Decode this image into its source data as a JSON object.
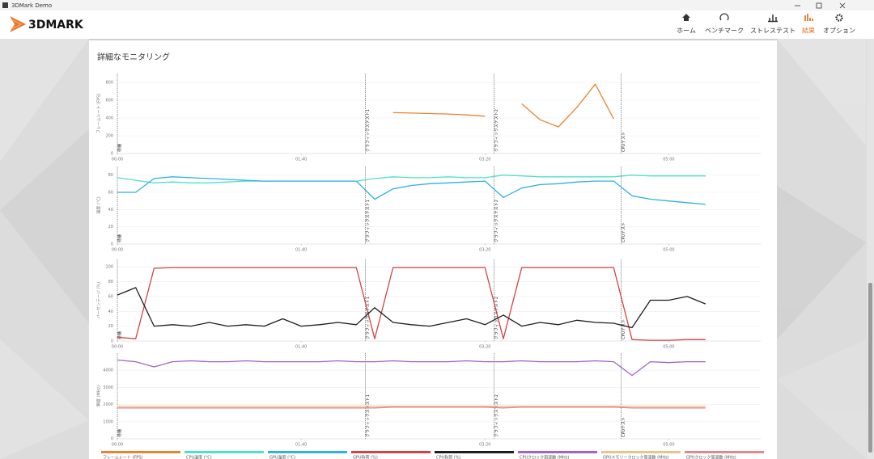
{
  "window": {
    "title": "3DMark Demo"
  },
  "app": {
    "logo": "3DMARK",
    "nav": [
      "ホーム",
      "ベンチマーク",
      "ストレステスト",
      "結果",
      "オプション"
    ],
    "active": 3
  },
  "panel": {
    "title": "詳細なモニタリング"
  },
  "phases": [
    {
      "x": 0,
      "label": "待機"
    },
    {
      "x": 135,
      "label": "グラフィックステスト1"
    },
    {
      "x": 205,
      "label": "グラフィックステスト2"
    },
    {
      "x": 274,
      "label": "CPUテスト"
    }
  ],
  "chart_data": [
    {
      "type": "line",
      "ylabel": "フレームレート (FPS)",
      "x": [
        0,
        10,
        20,
        30,
        40,
        50,
        60,
        70,
        80,
        90,
        100,
        110,
        120,
        130,
        140,
        150,
        160,
        170,
        180,
        190,
        200,
        210,
        220,
        230,
        240,
        250,
        260,
        270,
        280,
        290,
        300,
        310,
        320
      ],
      "xlim": [
        0,
        350
      ],
      "xticks": [
        {
          "value": 0,
          "label": "00:00"
        },
        {
          "value": 100,
          "label": "01:40"
        },
        {
          "value": 200,
          "label": "03:20"
        },
        {
          "value": 300,
          "label": "05:00"
        }
      ],
      "ylim": [
        0,
        900
      ],
      "yticks": [
        0,
        200,
        400,
        600,
        800
      ],
      "grid": true,
      "series": [
        {
          "name": "フレームレート (FPS)",
          "color": "#e8832f",
          "values": [
            null,
            null,
            null,
            null,
            null,
            null,
            null,
            null,
            null,
            null,
            null,
            null,
            null,
            null,
            null,
            460,
            455,
            450,
            445,
            435,
            420,
            null,
            560,
            380,
            300,
            520,
            780,
            390,
            null,
            null,
            null,
            null,
            null
          ]
        }
      ]
    },
    {
      "type": "line",
      "ylabel": "温度 (°C)",
      "x": [
        0,
        10,
        20,
        30,
        40,
        50,
        60,
        70,
        80,
        90,
        100,
        110,
        120,
        130,
        140,
        150,
        160,
        170,
        180,
        190,
        200,
        210,
        220,
        230,
        240,
        250,
        260,
        270,
        280,
        290,
        300,
        310,
        320
      ],
      "xlim": [
        0,
        350
      ],
      "xticks": [
        {
          "value": 0,
          "label": "00:00"
        },
        {
          "value": 100,
          "label": "01:40"
        },
        {
          "value": 200,
          "label": "03:20"
        },
        {
          "value": 300,
          "label": "05:00"
        }
      ],
      "ylim": [
        0,
        90
      ],
      "yticks": [
        0,
        20,
        40,
        60,
        80
      ],
      "grid": true,
      "series": [
        {
          "name": "CPU温度 (°C)",
          "color": "#4fe0c8",
          "values": [
            77,
            74,
            71,
            72,
            71,
            71,
            72,
            73,
            73,
            73,
            73,
            73,
            73,
            73,
            76,
            78,
            77,
            77,
            78,
            77,
            77,
            80,
            79,
            78,
            78,
            78,
            78,
            78,
            80,
            79,
            79,
            79,
            79
          ]
        },
        {
          "name": "GPU温度 (°C)",
          "color": "#2fb1e3",
          "values": [
            60,
            60,
            76,
            78,
            77,
            76,
            75,
            74,
            73,
            73,
            73,
            73,
            73,
            73,
            52,
            64,
            68,
            70,
            71,
            72,
            73,
            54,
            65,
            69,
            70,
            72,
            73,
            73,
            56,
            52,
            50,
            48,
            46
          ]
        }
      ]
    },
    {
      "type": "line",
      "ylabel": "パーセンテージ (%)",
      "x": [
        0,
        10,
        20,
        30,
        40,
        50,
        60,
        70,
        80,
        90,
        100,
        110,
        120,
        130,
        140,
        150,
        160,
        170,
        180,
        190,
        200,
        210,
        220,
        230,
        240,
        250,
        260,
        270,
        280,
        290,
        300,
        310,
        320
      ],
      "xlim": [
        0,
        350
      ],
      "xticks": [
        {
          "value": 0,
          "label": "00:00"
        },
        {
          "value": 100,
          "label": "01:40"
        },
        {
          "value": 200,
          "label": "03:20"
        },
        {
          "value": 300,
          "label": "05:00"
        }
      ],
      "ylim": [
        0,
        110
      ],
      "yticks": [
        0,
        20,
        40,
        60,
        80,
        100
      ],
      "grid": true,
      "series": [
        {
          "name": "GPU負荷 (%)",
          "color": "#d14444",
          "values": [
            5,
            3,
            98,
            99,
            99,
            99,
            99,
            99,
            99,
            99,
            99,
            99,
            99,
            99,
            3,
            99,
            99,
            99,
            99,
            99,
            99,
            3,
            99,
            99,
            99,
            99,
            99,
            99,
            2,
            1,
            1,
            2,
            2
          ]
        },
        {
          "name": "CPU負荷 (%)",
          "color": "#1e1e1e",
          "values": [
            62,
            72,
            20,
            22,
            20,
            25,
            20,
            22,
            20,
            30,
            20,
            22,
            25,
            22,
            45,
            25,
            22,
            20,
            25,
            30,
            22,
            35,
            20,
            25,
            22,
            28,
            25,
            24,
            18,
            55,
            55,
            60,
            50
          ]
        }
      ]
    },
    {
      "type": "line",
      "ylabel": "頻度 (MHz)",
      "x": [
        0,
        10,
        20,
        30,
        40,
        50,
        60,
        70,
        80,
        90,
        100,
        110,
        120,
        130,
        140,
        150,
        160,
        170,
        180,
        190,
        200,
        210,
        220,
        230,
        240,
        250,
        260,
        270,
        280,
        290,
        300,
        310,
        320
      ],
      "xlim": [
        0,
        350
      ],
      "xticks": [
        {
          "value": 0,
          "label": "00:00"
        },
        {
          "value": 100,
          "label": "01:40"
        },
        {
          "value": 200,
          "label": "03:20"
        },
        {
          "value": 300,
          "label": "05:00"
        }
      ],
      "ylim": [
        0,
        5000
      ],
      "yticks": [
        0,
        1000,
        2000,
        3000,
        4000
      ],
      "grid": true,
      "series": [
        {
          "name": "CPUクロック周波数 (MHz)",
          "color": "#a263c4",
          "values": [
            4600,
            4500,
            4200,
            4500,
            4550,
            4500,
            4500,
            4550,
            4500,
            4500,
            4500,
            4500,
            4550,
            4500,
            4500,
            4550,
            4500,
            4500,
            4500,
            4550,
            4500,
            4500,
            4550,
            4500,
            4500,
            4500,
            4550,
            4500,
            3700,
            4500,
            4450,
            4500,
            4500
          ]
        },
        {
          "name": "GPUメモリークロック周波数 (MHz)",
          "color": "#e9c48a",
          "values": [
            1900,
            1900,
            1900,
            1900,
            1900,
            1900,
            1900,
            1900,
            1900,
            1900,
            1900,
            1900,
            1900,
            1900,
            1900,
            1900,
            1900,
            1900,
            1900,
            1900,
            1900,
            1900,
            1900,
            1900,
            1900,
            1900,
            1900,
            1900,
            1900,
            1900,
            1900,
            1900,
            1900
          ]
        },
        {
          "name": "GPUクロック周波数 (MHz)",
          "color": "#e4868a",
          "values": [
            1800,
            1800,
            1800,
            1800,
            1800,
            1800,
            1800,
            1800,
            1800,
            1800,
            1800,
            1800,
            1800,
            1800,
            1800,
            1850,
            1850,
            1850,
            1850,
            1850,
            1850,
            1800,
            1850,
            1850,
            1850,
            1850,
            1850,
            1850,
            1800,
            1800,
            1800,
            1800,
            1800
          ]
        }
      ]
    }
  ]
}
